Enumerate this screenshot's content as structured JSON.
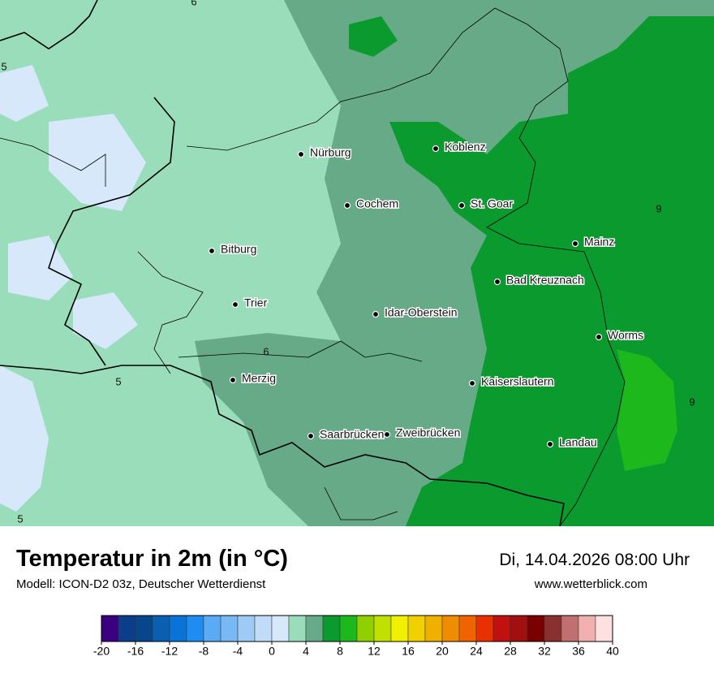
{
  "header": {
    "title": "Temperatur in 2m (in °C)",
    "model": "Modell: ICON-D2 03z, Deutscher Wetterdienst",
    "datetime": "Di, 14.04.2026 08:00 Uhr",
    "website": "www.wetterblick.com"
  },
  "cities": [
    "Nürburg",
    "Cochem",
    "Koblenz",
    "St. Goar",
    "Mainz",
    "Bitburg",
    "Bad Kreuznach",
    "Trier",
    "Idar-Oberstein",
    "Worms",
    "Merzig",
    "Kaiserslautern",
    "Saarbrücken",
    "Zweibrücken",
    "Landau"
  ],
  "isolines": [
    "6",
    "5",
    "9",
    "6",
    "5",
    "9",
    "5"
  ],
  "colorbar": {
    "range": [
      -20,
      40
    ],
    "ticks": [
      -20,
      -16,
      -12,
      -8,
      -4,
      0,
      4,
      8,
      12,
      16,
      20,
      24,
      28,
      32,
      36,
      40
    ],
    "colors": [
      "#3a0080",
      "#0b3d8a",
      "#08468c",
      "#0a5fb0",
      "#0a73d8",
      "#1e8cf0",
      "#5aaaf5",
      "#78b8f5",
      "#9dcbf5",
      "#c0dcf8",
      "#d6e8fa",
      "#99ddbb",
      "#66aa88",
      "#0a9a2e",
      "#1cb81c",
      "#90d000",
      "#c0e000",
      "#f0f000",
      "#f0d000",
      "#f0b000",
      "#f08c00",
      "#f06400",
      "#e83000",
      "#c01010",
      "#a01010",
      "#780000",
      "#8a3030",
      "#c07070",
      "#f0b0b0",
      "#fde0e0"
    ]
  }
}
